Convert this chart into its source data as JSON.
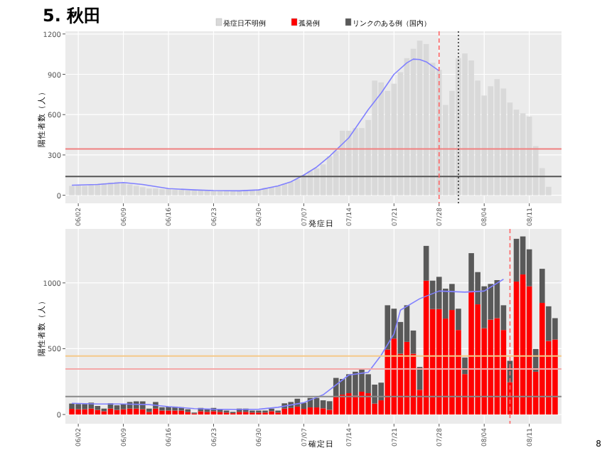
{
  "chart_data": [
    {
      "type": "bar",
      "title": "5. 秋田",
      "xlabel": "発症日",
      "ylabel": "陽性者数（人）",
      "legend": "top",
      "grid": true,
      "xlim": [
        "--05-31",
        "--08-16"
      ],
      "ylim": [
        -60,
        1220
      ],
      "yticks": [
        0,
        300,
        600,
        900,
        1200
      ],
      "xticks": [
        {
          "value": "--06-02",
          "label": "06/02"
        },
        {
          "value": "--06-09",
          "label": "06/09"
        },
        {
          "value": "--06-16",
          "label": "06/16"
        },
        {
          "value": "--06-23",
          "label": "06/23"
        },
        {
          "value": "--06-30",
          "label": "06/30"
        },
        {
          "value": "--07-07",
          "label": "07/07"
        },
        {
          "value": "--07-14",
          "label": "07/14"
        },
        {
          "value": "--07-21",
          "label": "07/21"
        },
        {
          "value": "--07-28",
          "label": "07/28"
        },
        {
          "value": "--08-04",
          "label": "08/04"
        },
        {
          "value": "--08-11",
          "label": "08/11"
        }
      ],
      "ref_lines": [
        {
          "axis": "y",
          "value": 345,
          "color": "#f08080",
          "line_style": "solid"
        },
        {
          "axis": "y",
          "value": 140,
          "color": "#555555",
          "line_style": "solid"
        },
        {
          "axis": "x",
          "value": "--07-28",
          "color": "#ff6666",
          "line_style": "dashed"
        },
        {
          "axis": "x",
          "value": "--07-31",
          "color": "#333333",
          "line_style": "dotted"
        }
      ],
      "series": [
        {
          "name": "発症日不明例",
          "color": "#d9d9d9",
          "x": [
            "--06-01",
            "--06-02",
            "--06-03",
            "--06-04",
            "--06-05",
            "--06-06",
            "--06-07",
            "--06-08",
            "--06-09",
            "--06-10",
            "--06-11",
            "--06-12",
            "--06-13",
            "--06-14",
            "--06-15",
            "--06-16",
            "--06-17",
            "--06-18",
            "--06-19",
            "--06-20",
            "--06-21",
            "--06-22",
            "--06-23",
            "--06-24",
            "--06-25",
            "--06-26",
            "--06-27",
            "--06-28",
            "--06-29",
            "--06-30",
            "--07-01",
            "--07-02",
            "--07-03",
            "--07-04",
            "--07-05",
            "--07-06",
            "--07-07",
            "--07-08",
            "--07-09",
            "--07-10",
            "--07-11",
            "--07-12",
            "--07-13",
            "--07-14",
            "--07-15",
            "--07-16",
            "--07-17",
            "--07-18",
            "--07-19",
            "--07-20",
            "--07-21",
            "--07-22",
            "--07-23",
            "--07-24",
            "--07-25",
            "--07-26",
            "--07-27",
            "--07-28",
            "--07-29",
            "--07-30",
            "--07-31",
            "--08-01",
            "--08-02",
            "--08-03",
            "--08-04",
            "--08-05",
            "--08-06",
            "--08-07",
            "--08-08",
            "--08-09",
            "--08-10",
            "--08-11",
            "--08-12",
            "--08-13",
            "--08-14"
          ],
          "values": [
            70,
            75,
            70,
            80,
            85,
            90,
            95,
            100,
            90,
            80,
            70,
            60,
            50,
            50,
            45,
            45,
            40,
            40,
            35,
            35,
            35,
            35,
            30,
            30,
            35,
            35,
            30,
            35,
            40,
            45,
            55,
            60,
            70,
            85,
            100,
            120,
            150,
            180,
            200,
            230,
            290,
            330,
            480,
            480,
            500,
            500,
            560,
            853,
            840,
            777,
            830,
            916,
            1020,
            1090,
            1150,
            1125,
            985,
            933,
            672,
            777,
            1020,
            1055,
            1003,
            853,
            742,
            811,
            864,
            794,
            690,
            637,
            610,
            585,
            366,
            202,
            63
          ]
        },
        {
          "type": "line",
          "color": "#8080ff",
          "x": [
            "--06-01",
            "--06-05",
            "--06-09",
            "--06-12",
            "--06-16",
            "--06-20",
            "--06-23",
            "--06-27",
            "--06-30",
            "--07-03",
            "--07-05",
            "--07-07",
            "--07-09",
            "--07-11",
            "--07-14",
            "--07-17",
            "--07-19",
            "--07-21",
            "--07-23",
            "--07-24",
            "--07-25",
            "--07-26",
            "--07-28"
          ],
          "values": [
            75,
            80,
            95,
            80,
            50,
            40,
            35,
            33,
            40,
            70,
            100,
            150,
            210,
            290,
            428,
            637,
            760,
            900,
            985,
            1013,
            1010,
            993,
            926
          ]
        }
      ]
    },
    {
      "type": "bar",
      "stacked": true,
      "xlabel": "確定日",
      "ylabel": "陽性者数（人）",
      "grid": true,
      "xlim": [
        "--05-31",
        "--08-16"
      ],
      "ylim": [
        -70,
        1410
      ],
      "yticks": [
        0,
        500,
        1000
      ],
      "xticks": [
        {
          "value": "--06-02",
          "label": "06/02"
        },
        {
          "value": "--06-09",
          "label": "06/09"
        },
        {
          "value": "--06-16",
          "label": "06/16"
        },
        {
          "value": "--06-23",
          "label": "06/23"
        },
        {
          "value": "--06-30",
          "label": "06/30"
        },
        {
          "value": "--07-07",
          "label": "07/07"
        },
        {
          "value": "--07-14",
          "label": "07/14"
        },
        {
          "value": "--07-21",
          "label": "07/21"
        },
        {
          "value": "--07-28",
          "label": "07/28"
        },
        {
          "value": "--08-04",
          "label": "08/04"
        },
        {
          "value": "--08-11",
          "label": "08/11"
        }
      ],
      "ref_lines": [
        {
          "axis": "y",
          "value": 444,
          "color": "#f5c98a",
          "line_style": "solid"
        },
        {
          "axis": "y",
          "value": 346,
          "color": "#f4a8a8",
          "line_style": "solid"
        },
        {
          "axis": "y",
          "value": 137,
          "color": "#888888",
          "line_style": "solid"
        },
        {
          "axis": "x",
          "value": "--08-08",
          "color": "#ff6666",
          "line_style": "dashed"
        }
      ],
      "annotations": [
        "8"
      ],
      "series": [
        {
          "name": "孤発例",
          "color": "#ff0000",
          "x": [
            "--06-01",
            "--06-02",
            "--06-03",
            "--06-04",
            "--06-05",
            "--06-06",
            "--06-07",
            "--06-08",
            "--06-09",
            "--06-10",
            "--06-11",
            "--06-12",
            "--06-13",
            "--06-14",
            "--06-15",
            "--06-16",
            "--06-17",
            "--06-18",
            "--06-19",
            "--06-20",
            "--06-21",
            "--06-22",
            "--06-23",
            "--06-24",
            "--06-25",
            "--06-26",
            "--06-27",
            "--06-28",
            "--06-29",
            "--06-30",
            "--07-01",
            "--07-02",
            "--07-03",
            "--07-04",
            "--07-05",
            "--07-06",
            "--07-07",
            "--07-08",
            "--07-09",
            "--07-10",
            "--07-11",
            "--07-12",
            "--07-13",
            "--07-14",
            "--07-15",
            "--07-16",
            "--07-17",
            "--07-18",
            "--07-19",
            "--07-20",
            "--07-21",
            "--07-22",
            "--07-23",
            "--07-24",
            "--07-25",
            "--07-26",
            "--07-27",
            "--07-28",
            "--07-29",
            "--07-30",
            "--07-31",
            "--08-01",
            "--08-02",
            "--08-03",
            "--08-04",
            "--08-05",
            "--08-06",
            "--08-07",
            "--08-08",
            "--08-09",
            "--08-10",
            "--08-11",
            "--08-12",
            "--08-13",
            "--08-14",
            "--08-15"
          ],
          "values": [
            43,
            40,
            40,
            45,
            35,
            25,
            45,
            35,
            40,
            45,
            45,
            40,
            20,
            45,
            30,
            30,
            30,
            30,
            20,
            8,
            25,
            20,
            25,
            20,
            15,
            10,
            20,
            20,
            15,
            15,
            15,
            25,
            15,
            45,
            50,
            60,
            43,
            54,
            54,
            47,
            36,
            137,
            151,
            162,
            144,
            173,
            162,
            83,
            108,
            494,
            577,
            462,
            552,
            462,
            188,
            1017,
            801,
            801,
            729,
            794,
            642,
            307,
            938,
            837,
            656,
            721,
            732,
            642,
            245,
            1010,
            1064,
            974,
            325,
            848,
            559,
            570
          ]
        },
        {
          "name": "リンクのある例（国内）",
          "color": "#595959",
          "x": [
            "--06-01",
            "--06-02",
            "--06-03",
            "--06-04",
            "--06-05",
            "--06-06",
            "--06-07",
            "--06-08",
            "--06-09",
            "--06-10",
            "--06-11",
            "--06-12",
            "--06-13",
            "--06-14",
            "--06-15",
            "--06-16",
            "--06-17",
            "--06-18",
            "--06-19",
            "--06-20",
            "--06-21",
            "--06-22",
            "--06-23",
            "--06-24",
            "--06-25",
            "--06-26",
            "--06-27",
            "--06-28",
            "--06-29",
            "--06-30",
            "--07-01",
            "--07-02",
            "--07-03",
            "--07-04",
            "--07-05",
            "--07-06",
            "--07-07",
            "--07-08",
            "--07-09",
            "--07-10",
            "--07-11",
            "--07-12",
            "--07-13",
            "--07-14",
            "--07-15",
            "--07-16",
            "--07-17",
            "--07-18",
            "--07-19",
            "--07-20",
            "--07-21",
            "--07-22",
            "--07-23",
            "--07-24",
            "--07-25",
            "--07-26",
            "--07-27",
            "--07-28",
            "--07-29",
            "--07-30",
            "--07-31",
            "--08-01",
            "--08-02",
            "--08-03",
            "--08-04",
            "--08-05",
            "--08-06",
            "--08-07",
            "--08-08",
            "--08-09",
            "--08-10",
            "--08-11",
            "--08-12",
            "--08-13",
            "--08-14",
            "--08-15"
          ],
          "values": [
            40,
            40,
            40,
            45,
            30,
            20,
            40,
            35,
            40,
            50,
            55,
            60,
            25,
            50,
            25,
            30,
            30,
            25,
            20,
            7,
            25,
            20,
            25,
            20,
            15,
            10,
            25,
            25,
            15,
            15,
            15,
            20,
            15,
            40,
            45,
            60,
            47,
            72,
            72,
            61,
            65,
            141,
            119,
            144,
            181,
            177,
            144,
            144,
            134,
            336,
            227,
            241,
            278,
            176,
            173,
            264,
            216,
            245,
            227,
            198,
            162,
            126,
            288,
            245,
            318,
            271,
            289,
            188,
            163,
            325,
            289,
            281,
            173,
            259,
            263,
            162
          ]
        },
        {
          "type": "line",
          "color": "#8080ff",
          "x": [
            "--06-01",
            "--06-05",
            "--06-09",
            "--06-13",
            "--06-16",
            "--06-20",
            "--06-23",
            "--06-27",
            "--06-30",
            "--07-03",
            "--07-07",
            "--07-10",
            "--07-14",
            "--07-17",
            "--07-19",
            "--07-21",
            "--07-22",
            "--07-25",
            "--07-28",
            "--08-01",
            "--08-04",
            "--08-07"
          ],
          "values": [
            85,
            80,
            80,
            75,
            60,
            45,
            40,
            38,
            40,
            55,
            90,
            150,
            300,
            320,
            450,
            613,
            793,
            880,
            938,
            930,
            938,
            1028
          ]
        }
      ]
    }
  ]
}
